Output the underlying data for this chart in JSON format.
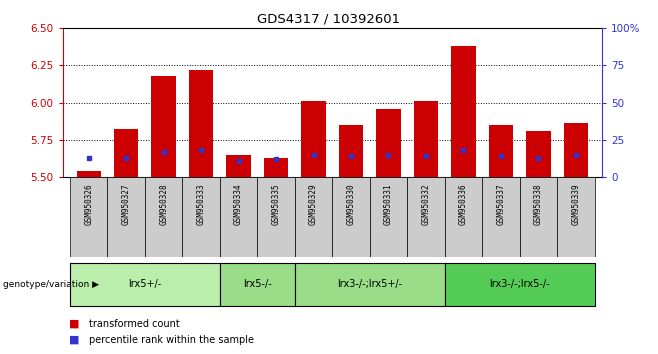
{
  "title": "GDS4317 / 10392601",
  "samples": [
    "GSM950326",
    "GSM950327",
    "GSM950328",
    "GSM950333",
    "GSM950334",
    "GSM950335",
    "GSM950329",
    "GSM950330",
    "GSM950331",
    "GSM950332",
    "GSM950336",
    "GSM950337",
    "GSM950338",
    "GSM950339"
  ],
  "red_bar_tops": [
    5.54,
    5.82,
    6.18,
    6.22,
    5.65,
    5.63,
    6.01,
    5.85,
    5.96,
    6.01,
    6.38,
    5.85,
    5.81,
    5.86
  ],
  "blue_dot_vals": [
    5.63,
    5.63,
    5.67,
    5.68,
    5.61,
    5.62,
    5.65,
    5.64,
    5.65,
    5.64,
    5.68,
    5.64,
    5.63,
    5.65
  ],
  "bar_base": 5.5,
  "ylim_left": [
    5.5,
    6.5
  ],
  "ylim_right": [
    0,
    100
  ],
  "yticks_left": [
    5.5,
    5.75,
    6.0,
    6.25,
    6.5
  ],
  "yticks_right": [
    0,
    25,
    50,
    75,
    100
  ],
  "ytick_labels_right": [
    "0",
    "25",
    "50",
    "75",
    "100%"
  ],
  "groups": [
    {
      "label": "lrx5+/-",
      "start": 0,
      "end": 4
    },
    {
      "label": "lrx5-/-",
      "start": 4,
      "end": 6
    },
    {
      "label": "lrx3-/-;lrx5+/-",
      "start": 6,
      "end": 10
    },
    {
      "label": "lrx3-/-;lrx5-/-",
      "start": 10,
      "end": 14
    }
  ],
  "group_colors": [
    "#bbeeaa",
    "#99dd88",
    "#99dd88",
    "#55cc55"
  ],
  "bar_color": "#cc0000",
  "dot_color": "#3333cc",
  "bar_width": 0.65,
  "genotype_label": "genotype/variation",
  "legend_items": [
    "transformed count",
    "percentile rank within the sample"
  ],
  "legend_colors": [
    "#cc0000",
    "#3333cc"
  ],
  "axis_color_left": "#cc0000",
  "axis_color_right": "#3333cc",
  "sample_bg": "#cccccc",
  "plot_bg": "#ffffff"
}
